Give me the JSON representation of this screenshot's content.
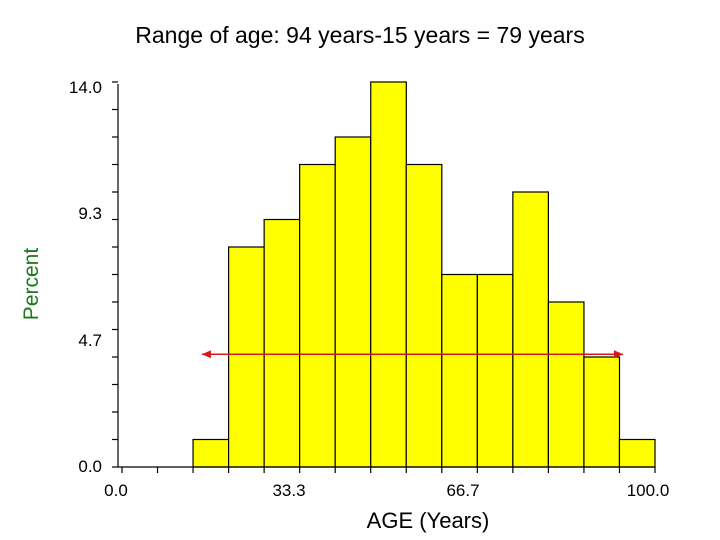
{
  "chart_data": {
    "type": "bar",
    "title": "Range of age: 94 years-15 years = 79 years",
    "xlabel": "AGE (Years)",
    "ylabel": "Percent",
    "xlim": [
      0.0,
      100.0
    ],
    "ylim": [
      0.0,
      14.0
    ],
    "x_ticks": [
      "0.0",
      "33.3",
      "66.7",
      "100.0"
    ],
    "y_ticks": [
      "14.0",
      "9.3",
      "4.7",
      "0.0"
    ],
    "bin_width": 6.67,
    "bins": [
      {
        "start": 13.33,
        "value": 1.0
      },
      {
        "start": 20.0,
        "value": 8.0
      },
      {
        "start": 26.67,
        "value": 9.0
      },
      {
        "start": 33.33,
        "value": 11.0
      },
      {
        "start": 40.0,
        "value": 12.0
      },
      {
        "start": 46.67,
        "value": 14.0
      },
      {
        "start": 53.33,
        "value": 11.0
      },
      {
        "start": 60.0,
        "value": 7.0
      },
      {
        "start": 66.67,
        "value": 7.0
      },
      {
        "start": 73.33,
        "value": 10.0
      },
      {
        "start": 80.0,
        "value": 6.0
      },
      {
        "start": 86.67,
        "value": 4.0
      },
      {
        "start": 93.33,
        "value": 1.0
      }
    ],
    "range_arrow": {
      "from": 15,
      "to": 94,
      "y": 4.1
    },
    "colors": {
      "bar_fill": "#ffff00",
      "bar_stroke": "#000000",
      "arrow": "#d81818",
      "ylabel": "#1a7a1a"
    }
  }
}
